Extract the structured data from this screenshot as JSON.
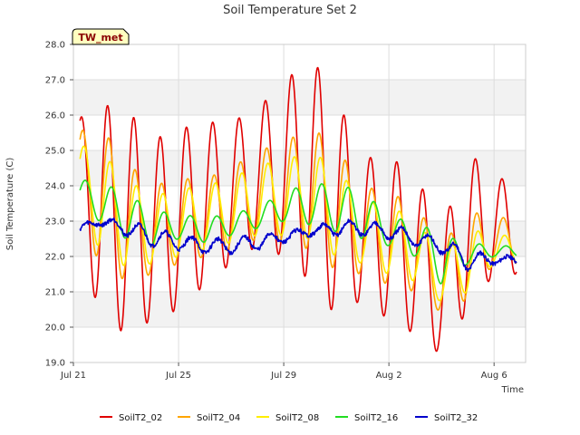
{
  "chart_data": {
    "type": "line",
    "title": "Soil Temperature Set 2",
    "xlabel": "Time",
    "ylabel": "Soil Temperature (C)",
    "site_tag": "TW_met",
    "x_start": "2024-07-21",
    "x_range": [
      0,
      16
    ],
    "ylim": [
      19.0,
      28.0
    ],
    "yticks": [
      "19.0",
      "20.0",
      "21.0",
      "22.0",
      "23.0",
      "24.0",
      "25.0",
      "26.0",
      "27.0",
      "28.0"
    ],
    "xticks": [
      {
        "label": "Jul 21",
        "day": 0
      },
      {
        "label": "Jul 25",
        "day": 4
      },
      {
        "label": "Jul 29",
        "day": 8
      },
      {
        "label": "Aug 2",
        "day": 12
      },
      {
        "label": "Aug 6",
        "day": 16
      }
    ],
    "x_end_day": 17.2,
    "data_start_day": 0.25,
    "data_end_day": 16.85,
    "grid": true,
    "legend_placement": "bottom",
    "series": [
      {
        "name": "SoilT2_02",
        "color": "#e00000",
        "min": [
          23.2,
          20.3,
          19.8,
          20.2,
          20.5,
          21.2,
          21.8,
          22.3,
          22.0,
          21.3,
          20.3,
          20.8,
          20.2,
          19.8,
          19.2,
          20.5,
          21.5
        ],
        "max": [
          25.8,
          26.3,
          26.2,
          25.3,
          25.6,
          25.8,
          25.8,
          26.2,
          26.9,
          27.7,
          26.5,
          24.8,
          24.8,
          24.4,
          22.7,
          25.0,
          24.2
        ]
      },
      {
        "name": "SoilT2_04",
        "color": "#ffa500",
        "min": [
          23.4,
          21.8,
          21.3,
          21.5,
          21.8,
          22.0,
          22.2,
          22.5,
          22.4,
          22.2,
          21.6,
          21.5,
          21.2,
          21.0,
          20.4,
          20.8,
          21.8
        ],
        "max": [
          25.5,
          25.7,
          24.7,
          24.0,
          24.2,
          24.2,
          24.5,
          25.0,
          25.2,
          25.7,
          25.1,
          24.0,
          23.8,
          23.5,
          22.3,
          23.3,
          23.1
        ]
      },
      {
        "name": "SoilT2_08",
        "color": "#ffee00",
        "min": [
          23.6,
          22.2,
          21.7,
          21.8,
          22.0,
          22.2,
          22.4,
          22.6,
          22.6,
          22.5,
          22.0,
          21.8,
          21.5,
          21.3,
          20.7,
          21.0,
          21.8
        ],
        "max": [
          25.2,
          25.0,
          24.2,
          23.7,
          23.9,
          24.0,
          24.2,
          24.6,
          24.7,
          25.0,
          24.5,
          23.6,
          23.4,
          23.1,
          22.0,
          22.8,
          22.6
        ]
      },
      {
        "name": "SoilT2_16",
        "color": "#22dd22",
        "min": [
          23.4,
          23.0,
          22.5,
          22.3,
          22.5,
          22.4,
          22.6,
          22.8,
          23.0,
          22.9,
          22.7,
          22.5,
          22.3,
          22.0,
          21.2,
          21.8,
          22.0
        ],
        "max": [
          24.2,
          24.1,
          23.8,
          23.3,
          23.2,
          23.1,
          23.2,
          23.4,
          23.8,
          24.1,
          24.0,
          23.9,
          23.1,
          23.0,
          22.6,
          22.4,
          22.3
        ]
      },
      {
        "name": "SoilT2_32",
        "color": "#0000cc",
        "min": [
          22.6,
          22.9,
          22.6,
          22.3,
          22.2,
          22.1,
          22.1,
          22.2,
          22.4,
          22.6,
          22.6,
          22.6,
          22.5,
          22.3,
          22.1,
          21.6,
          21.8
        ],
        "max": [
          22.8,
          23.1,
          23.0,
          22.8,
          22.6,
          22.5,
          22.5,
          22.6,
          22.7,
          22.8,
          23.0,
          23.0,
          22.9,
          22.7,
          22.5,
          22.2,
          22.0
        ]
      }
    ]
  }
}
